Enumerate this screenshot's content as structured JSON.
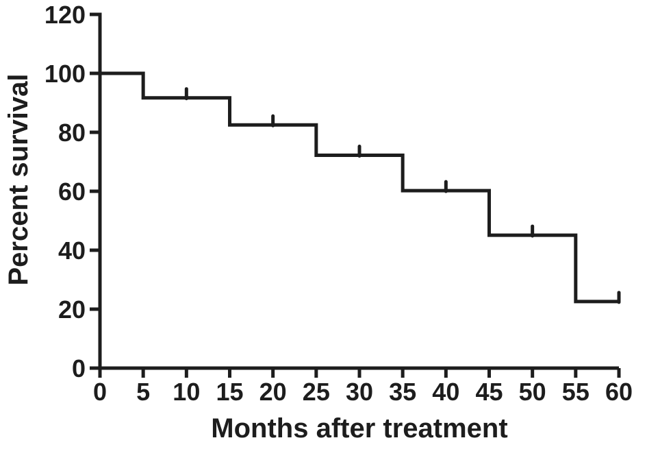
{
  "figure": {
    "background_color": "#ffffff",
    "line_color": "#1d1d1d"
  },
  "chart_data": {
    "type": "line",
    "subtype": "kaplan-meier-step",
    "title": "",
    "xlabel": "Months after treatment",
    "ylabel": "Percent survival",
    "xlim": [
      0,
      60
    ],
    "ylim": [
      0,
      120
    ],
    "xticks": [
      0,
      5,
      10,
      15,
      20,
      25,
      30,
      35,
      40,
      45,
      50,
      55,
      60
    ],
    "yticks": [
      0,
      20,
      40,
      60,
      80,
      100,
      120
    ],
    "grid": false,
    "legend_position": "none",
    "series": [
      {
        "name": "Percent survival",
        "color": "#1d1d1d",
        "steps": [
          {
            "month": 0,
            "survival": 100
          },
          {
            "month": 5,
            "survival": 91.7
          },
          {
            "month": 15,
            "survival": 82.5
          },
          {
            "month": 25,
            "survival": 72.2
          },
          {
            "month": 35,
            "survival": 60.2
          },
          {
            "month": 45,
            "survival": 45.1
          },
          {
            "month": 55,
            "survival": 22.6
          }
        ],
        "end_month": 60,
        "censor_marks": [
          {
            "month": 10,
            "survival": 91.7
          },
          {
            "month": 20,
            "survival": 82.5
          },
          {
            "month": 30,
            "survival": 72.2
          },
          {
            "month": 40,
            "survival": 60.2
          },
          {
            "month": 50,
            "survival": 45.1
          },
          {
            "month": 60,
            "survival": 22.6
          }
        ]
      }
    ]
  }
}
